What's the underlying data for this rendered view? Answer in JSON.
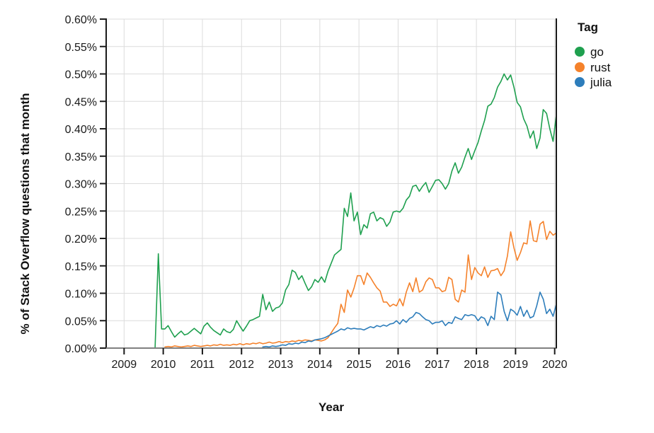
{
  "page": {
    "background": "#ffffff"
  },
  "chart_data": {
    "type": "line",
    "title": "",
    "xlabel": "Year",
    "ylabel": "% of Stack Overflow questions that month",
    "grid": true,
    "xlim": [
      2008.542,
      2020.042
    ],
    "ylim": [
      0,
      0.6
    ],
    "x_ticks": [
      2009,
      2010,
      2011,
      2012,
      2013,
      2014,
      2015,
      2016,
      2017,
      2018,
      2019,
      2020
    ],
    "y_tick_values": [
      0,
      0.05,
      0.1,
      0.15,
      0.2,
      0.25,
      0.3,
      0.35,
      0.4,
      0.45,
      0.5,
      0.55,
      0.6
    ],
    "y_tick_labels": [
      "0.00%",
      "0.05%",
      "0.10%",
      "0.15%",
      "0.20%",
      "0.25%",
      "0.30%",
      "0.35%",
      "0.40%",
      "0.45%",
      "0.50%",
      "0.55%",
      "0.60%"
    ],
    "legend": {
      "title": "Tag",
      "position": "right",
      "entries": [
        {
          "label": "go",
          "color": "#1fa04f"
        },
        {
          "label": "rust",
          "color": "#f5822b"
        },
        {
          "label": "julia",
          "color": "#2d7dbb"
        }
      ]
    },
    "series": [
      {
        "name": "go",
        "color": "#1fa04f",
        "start": 2008.625,
        "step_months": 1,
        "values": [
          0,
          0,
          0,
          0,
          0,
          0,
          0,
          0,
          0,
          0,
          0,
          0,
          0,
          0,
          0,
          0.172,
          0.035,
          0.035,
          0.041,
          0.03,
          0.02,
          0.026,
          0.031,
          0.024,
          0.026,
          0.031,
          0.036,
          0.031,
          0.026,
          0.04,
          0.046,
          0.038,
          0.032,
          0.028,
          0.024,
          0.035,
          0.03,
          0.028,
          0.034,
          0.05,
          0.04,
          0.031,
          0.04,
          0.05,
          0.052,
          0.055,
          0.058,
          0.098,
          0.07,
          0.084,
          0.067,
          0.073,
          0.075,
          0.082,
          0.106,
          0.116,
          0.142,
          0.138,
          0.125,
          0.132,
          0.118,
          0.105,
          0.112,
          0.125,
          0.12,
          0.13,
          0.12,
          0.14,
          0.155,
          0.17,
          0.175,
          0.18,
          0.255,
          0.24,
          0.283,
          0.232,
          0.248,
          0.207,
          0.225,
          0.219,
          0.245,
          0.248,
          0.232,
          0.238,
          0.235,
          0.222,
          0.23,
          0.248,
          0.25,
          0.248,
          0.255,
          0.27,
          0.277,
          0.295,
          0.297,
          0.286,
          0.295,
          0.302,
          0.284,
          0.295,
          0.306,
          0.307,
          0.3,
          0.29,
          0.3,
          0.323,
          0.338,
          0.319,
          0.33,
          0.348,
          0.364,
          0.344,
          0.36,
          0.375,
          0.396,
          0.415,
          0.441,
          0.445,
          0.457,
          0.476,
          0.486,
          0.5,
          0.489,
          0.498,
          0.476,
          0.448,
          0.44,
          0.418,
          0.405,
          0.383,
          0.396,
          0.364,
          0.383,
          0.435,
          0.428,
          0.4,
          0.377,
          0.425
        ]
      },
      {
        "name": "rust",
        "color": "#f5822b",
        "start": 2010.042,
        "step_months": 1,
        "values": [
          0.002,
          0.003,
          0.002,
          0.004,
          0.003,
          0.002,
          0.003,
          0.004,
          0.003,
          0.005,
          0.004,
          0.003,
          0.004,
          0.005,
          0.004,
          0.006,
          0.005,
          0.007,
          0.005,
          0.006,
          0.005,
          0.007,
          0.006,
          0.008,
          0.006,
          0.008,
          0.007,
          0.009,
          0.008,
          0.01,
          0.008,
          0.009,
          0.011,
          0.009,
          0.01,
          0.012,
          0.01,
          0.012,
          0.011,
          0.013,
          0.012,
          0.014,
          0.013,
          0.015,
          0.014,
          0.013,
          0.015,
          0.014,
          0.013,
          0.015,
          0.019,
          0.028,
          0.037,
          0.045,
          0.08,
          0.065,
          0.106,
          0.093,
          0.11,
          0.132,
          0.132,
          0.116,
          0.137,
          0.129,
          0.119,
          0.11,
          0.104,
          0.084,
          0.084,
          0.076,
          0.08,
          0.077,
          0.09,
          0.077,
          0.102,
          0.119,
          0.103,
          0.128,
          0.102,
          0.106,
          0.121,
          0.128,
          0.125,
          0.11,
          0.11,
          0.103,
          0.105,
          0.129,
          0.125,
          0.089,
          0.084,
          0.106,
          0.102,
          0.17,
          0.125,
          0.147,
          0.137,
          0.132,
          0.148,
          0.129,
          0.141,
          0.142,
          0.145,
          0.132,
          0.141,
          0.168,
          0.212,
          0.183,
          0.16,
          0.174,
          0.192,
          0.19,
          0.232,
          0.196,
          0.194,
          0.226,
          0.231,
          0.198,
          0.213,
          0.206,
          0.21
        ]
      },
      {
        "name": "julia",
        "color": "#2d7dbb",
        "start": 2012.542,
        "step_months": 1,
        "values": [
          0.002,
          0.003,
          0.002,
          0.004,
          0.003,
          0.004,
          0.006,
          0.005,
          0.008,
          0.007,
          0.009,
          0.008,
          0.011,
          0.01,
          0.013,
          0.012,
          0.015,
          0.016,
          0.017,
          0.019,
          0.022,
          0.025,
          0.028,
          0.031,
          0.035,
          0.033,
          0.037,
          0.035,
          0.036,
          0.035,
          0.035,
          0.033,
          0.036,
          0.039,
          0.037,
          0.041,
          0.039,
          0.042,
          0.04,
          0.044,
          0.045,
          0.05,
          0.044,
          0.052,
          0.047,
          0.054,
          0.057,
          0.065,
          0.063,
          0.057,
          0.052,
          0.05,
          0.044,
          0.047,
          0.047,
          0.05,
          0.041,
          0.047,
          0.045,
          0.057,
          0.054,
          0.052,
          0.061,
          0.059,
          0.061,
          0.059,
          0.05,
          0.057,
          0.054,
          0.041,
          0.058,
          0.052,
          0.102,
          0.097,
          0.067,
          0.05,
          0.071,
          0.067,
          0.06,
          0.076,
          0.058,
          0.069,
          0.055,
          0.058,
          0.077,
          0.102,
          0.089,
          0.063,
          0.071,
          0.058,
          0.08
        ]
      }
    ],
    "style": {
      "grid_color": "#dcdcdc",
      "axis_color": "#1a1a1a",
      "bottom_axis_color": "#808080",
      "tick_label_color": "#1a1a1a",
      "line_width": 1.6
    }
  }
}
